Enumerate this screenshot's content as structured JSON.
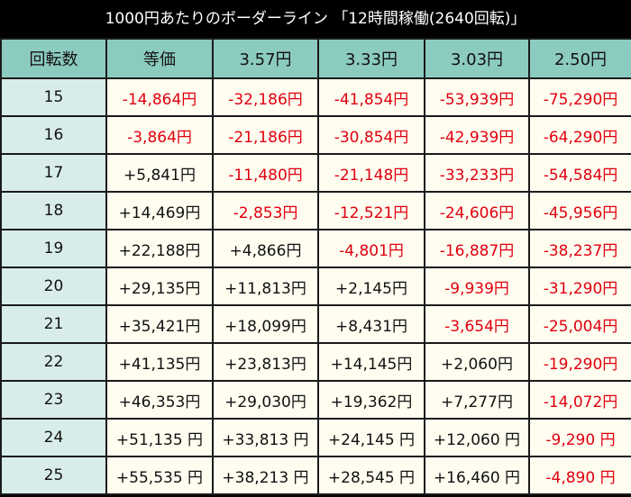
{
  "title": "1000円あたりのボーダーライン 「12時間稼働(2640回転)」",
  "header": [
    "回転数",
    "等価",
    "3.57円",
    "3.33円",
    "3.03円",
    "2.50円"
  ],
  "colors": {
    "header_bg": "#8ccbbf",
    "rowhead_bg": "#d8ede9",
    "cell_bg": "#fffdf0",
    "negative": "#e0000f",
    "positive": "#111111",
    "title_bg": "#000000"
  },
  "rows": [
    {
      "spins": "15",
      "vals": [
        "-14,864円",
        "-32,186円",
        "-41,854円",
        "-53,939円",
        "-75,290円"
      ]
    },
    {
      "spins": "16",
      "vals": [
        "-3,864円",
        "-21,186円",
        "-30,854円",
        "-42,939円",
        "-64,290円"
      ]
    },
    {
      "spins": "17",
      "vals": [
        "+5,841円",
        "-11,480円",
        "-21,148円",
        "-33,233円",
        "-54,584円"
      ]
    },
    {
      "spins": "18",
      "vals": [
        "+14,469円",
        "-2,853円",
        "-12,521円",
        "-24,606円",
        "-45,956円"
      ]
    },
    {
      "spins": "19",
      "vals": [
        "+22,188円",
        "+4,866円",
        "-4,801円",
        "-16,887円",
        "-38,237円"
      ]
    },
    {
      "spins": "20",
      "vals": [
        "+29,135円",
        "+11,813円",
        "+2,145円",
        "-9,939円",
        "-31,290円"
      ]
    },
    {
      "spins": "21",
      "vals": [
        "+35,421円",
        "+18,099円",
        "+8,431円",
        "-3,654円",
        "-25,004円"
      ]
    },
    {
      "spins": "22",
      "vals": [
        "+41,135円",
        "+23,813円",
        "+14,145円",
        "+2,060円",
        "-19,290円"
      ]
    },
    {
      "spins": "23",
      "vals": [
        "+46,353円",
        "+29,030円",
        "+19,362円",
        "+7,277円",
        "-14,072円"
      ]
    },
    {
      "spins": "24",
      "vals": [
        "+51,135 円",
        "+33,813 円",
        "+24,145 円",
        "+12,060 円",
        "-9,290 円"
      ]
    },
    {
      "spins": "25",
      "vals": [
        "+55,535 円",
        "+38,213 円",
        "+28,545 円",
        "+16,460 円",
        "-4,890 円"
      ]
    }
  ]
}
